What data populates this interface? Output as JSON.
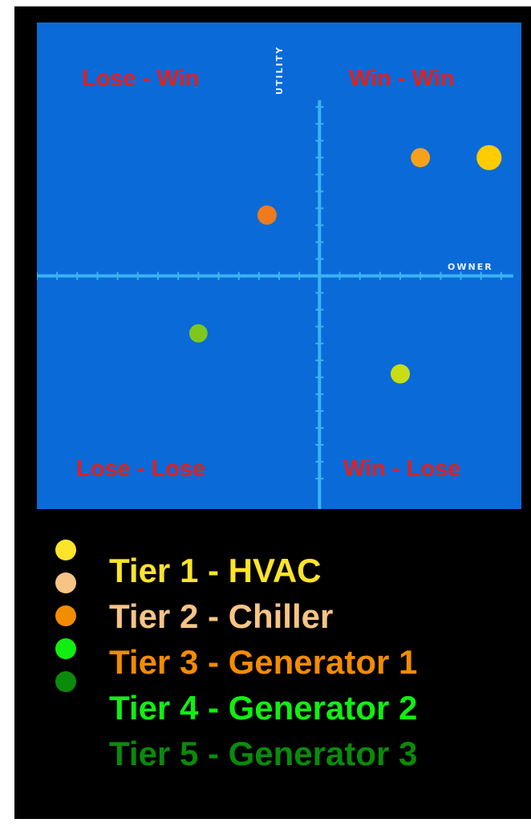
{
  "chart_data": {
    "type": "scatter",
    "quadrants": {
      "top_left": "Lose - Win",
      "top_right": "Win - Win",
      "bottom_left": "Lose - Lose",
      "bottom_right": "Win - Lose"
    },
    "axes": {
      "x_label": "OWNER",
      "y_label": "UTILITY"
    },
    "points": [
      {
        "x": 4.2,
        "y": 3.5,
        "color": "#ffcc00",
        "size": 1.3
      },
      {
        "x": 2.5,
        "y": 3.5,
        "color": "#f5a21a",
        "size": 1.0
      },
      {
        "x": -1.3,
        "y": 1.8,
        "color": "#ef7b1c",
        "size": 1.0
      },
      {
        "x": -3.0,
        "y": -1.7,
        "color": "#7ec71e",
        "size": 0.95
      },
      {
        "x": 2.0,
        "y": -2.9,
        "color": "#c8dd14",
        "size": 1.0
      }
    ],
    "xlim": [
      -7,
      5
    ],
    "ylim": [
      -6.9,
      7.5
    ],
    "grid": false,
    "legend_position": "bottom",
    "legend": [
      {
        "label": "Tier 1 - HVAC",
        "dot_color": "#fde32c",
        "text_color": "#fde32c"
      },
      {
        "label": "Tier 2 - Chiller",
        "dot_color": "#f7c485",
        "text_color": "#f7c485"
      },
      {
        "label": "Tier 3 - Generator 1",
        "dot_color": "#f28c00",
        "text_color": "#f28c00"
      },
      {
        "label": "Tier 4 - Generator 2",
        "dot_color": "#12ee12",
        "text_color": "#12ee12"
      },
      {
        "label": "Tier 5 - Generator 3",
        "dot_color": "#0b8a0b",
        "text_color": "#0b8a0b"
      }
    ],
    "colors": {
      "plot_background": "#0a6ad8",
      "axis": "#3ab3f2",
      "quadrant_text": "#e0201d",
      "frame": "#000000"
    }
  }
}
